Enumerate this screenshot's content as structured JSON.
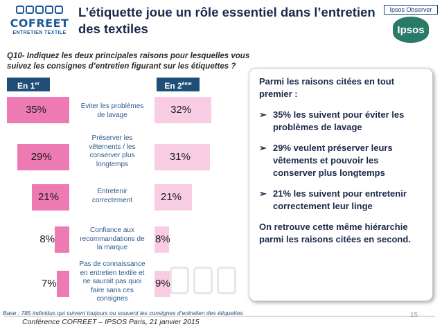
{
  "logo": {
    "brand": "COFREET",
    "subtitle": "ENTRETIEN TEXTILE"
  },
  "title": "L’étiquette joue un rôle essentiel dans l’entretien des textiles",
  "ipsos": {
    "observer": "Ipsos Observer",
    "name": "Ipsos"
  },
  "question": "Q10- Indiquez les deux principales raisons pour lesquelles vous suivez les consignes d’entretien figurant sur les étiquettes ?",
  "columns": {
    "first": "En 1",
    "first_sup": "er",
    "second": "En 2",
    "second_sup": "ème"
  },
  "colors": {
    "first_bar": "#ee7ab3",
    "second_bar": "#f8cde3",
    "label_bg": "#1f4e79",
    "reason_text": "#2b5a8a"
  },
  "chart_data": {
    "type": "bar",
    "categories": [
      "Eviter les problèmes de lavage",
      "Préserver les vêtements / les conserver plus longtemps",
      "Entretenir correctement",
      "Confiance aux recommandations de la marque",
      "Pas de connaissance en entretien textile et ne saurait pas quoi faire sans ces consignes"
    ],
    "series": [
      {
        "name": "En 1er",
        "values": [
          35,
          29,
          21,
          8,
          7
        ]
      },
      {
        "name": "En 2ème",
        "values": [
          32,
          31,
          21,
          8,
          9
        ]
      }
    ],
    "value_labels_first": [
      "35%",
      "29%",
      "21%",
      "8%",
      "7%"
    ],
    "value_labels_second": [
      "32%",
      "31%",
      "21%",
      "8%",
      "9%"
    ]
  },
  "reasons": [
    "Eviter les problèmes de lavage",
    "Préserver les vêtements  / les conserver plus longtemps",
    "Entretenir correctement",
    "Confiance aux recommandations de la marque",
    "Pas de connaissance en entretien textile et ne saurait pas quoi faire sans ces consignes"
  ],
  "callout": {
    "intro": "Parmi les raisons citées en tout premier :",
    "bullets": [
      "35% les suivent pour éviter les problèmes de lavage",
      "29% veulent préserver leurs vêtements et pouvoir les conserver plus longtemps",
      "21% les suivent pour entretenir correctement leur linge"
    ],
    "conclusion": "On retrouve cette même hiérarchie parmi les raisons citées en second."
  },
  "base": "Base : 785 individus qui suivent toujours ou souvent les consignes d’entretien des étiquettes",
  "footer": "Conférence COFREET – IPSOS       Paris, 21 janvier 2015",
  "page_number": "15"
}
